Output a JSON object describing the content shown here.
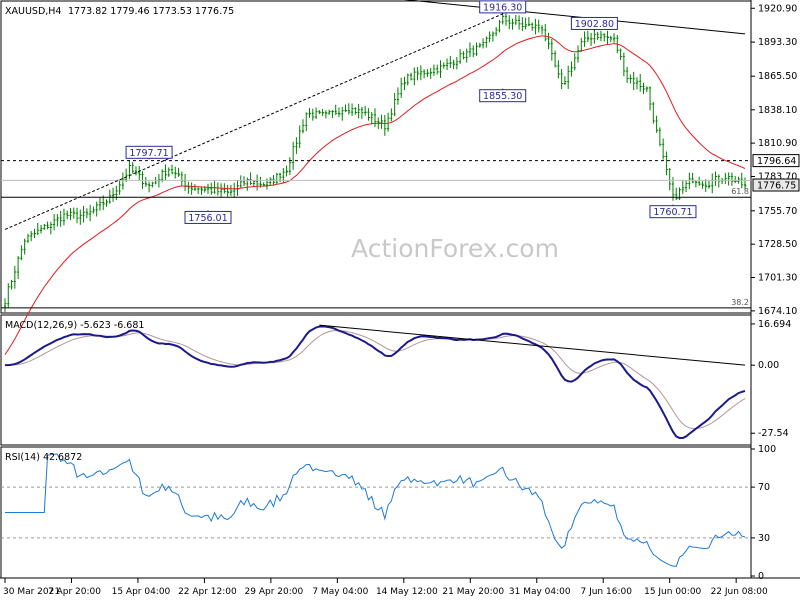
{
  "header": {
    "symbol_tf": "XAUUSD,H4",
    "ohlc": "1773.82 1779.46 1773.53 1776.75"
  },
  "watermark": "ActionForex.com",
  "colors": {
    "candle": "#008000",
    "ma": "#e11b1b",
    "macd": "#1a1a8c",
    "signal": "#b49696",
    "rsi": "#1e78d8",
    "label_border": "#2a2a9a"
  },
  "chart_data": [
    {
      "type": "candlestick",
      "panel": "price",
      "ylim": [
        1674,
        1926
      ],
      "y_ticks": [
        1920.9,
        1893.3,
        1865.5,
        1838.1,
        1810.9,
        1783.7,
        1755.7,
        1728.5,
        1701.3,
        1674.1
      ],
      "x_tick_labels": [
        "30 Mar 2021",
        "7 Apr 20:00",
        "15 Apr 04:00",
        "22 Apr 12:00",
        "29 Apr 20:00",
        "7 May 04:00",
        "14 May 12:00",
        "21 May 20:00",
        "31 May 04:00",
        "7 Jun 16:00",
        "15 Jun 00:00",
        "22 Jun 08:00"
      ],
      "anchors": [
        [
          0,
          1683
        ],
        [
          6,
          1732
        ],
        [
          12,
          1742
        ],
        [
          18,
          1752
        ],
        [
          25,
          1752
        ],
        [
          32,
          1766
        ],
        [
          38,
          1790
        ],
        [
          44,
          1776
        ],
        [
          50,
          1790
        ],
        [
          56,
          1775
        ],
        [
          62,
          1773
        ],
        [
          68,
          1770
        ],
        [
          74,
          1780
        ],
        [
          80,
          1777
        ],
        [
          86,
          1790
        ],
        [
          92,
          1835
        ],
        [
          98,
          1833
        ],
        [
          104,
          1840
        ],
        [
          110,
          1835
        ],
        [
          116,
          1825
        ],
        [
          122,
          1863
        ],
        [
          128,
          1869
        ],
        [
          134,
          1873
        ],
        [
          140,
          1883
        ],
        [
          146,
          1890
        ],
        [
          152,
          1912
        ],
        [
          158,
          1907
        ],
        [
          164,
          1905
        ],
        [
          170,
          1857
        ],
        [
          176,
          1892
        ],
        [
          180,
          1900
        ],
        [
          186,
          1895
        ],
        [
          190,
          1865
        ],
        [
          196,
          1855
        ],
        [
          200,
          1808
        ],
        [
          204,
          1766
        ],
        [
          210,
          1782
        ],
        [
          214,
          1778
        ],
        [
          220,
          1784
        ],
        [
          226,
          1776
        ]
      ],
      "price_labels": [
        {
          "text": "1916.30",
          "bar": 152,
          "value": 1916.3,
          "pos": "above"
        },
        {
          "text": "1902.80",
          "bar": 180,
          "value": 1902.8,
          "pos": "above"
        },
        {
          "text": "1855.30",
          "bar": 152,
          "value": 1855.3,
          "pos": "below"
        },
        {
          "text": "1797.71",
          "bar": 44,
          "value": 1797.71,
          "pos": "above"
        },
        {
          "text": "1756.01",
          "bar": 62,
          "value": 1756.01,
          "pos": "below"
        },
        {
          "text": "1760.71",
          "bar": 204,
          "value": 1760.71,
          "pos": "below"
        }
      ],
      "hlines": [
        {
          "value": 1796.64,
          "style": "dashed",
          "label": "1796.64"
        },
        {
          "value": 1766.8,
          "style": "solid",
          "label": "61.8"
        },
        {
          "value": 1780.5,
          "style": "faint",
          "label": ""
        },
        {
          "value": 1676.5,
          "style": "solid",
          "label": "38.2"
        }
      ],
      "current_price": "1776.75",
      "trendlines": [
        {
          "from": [
            0,
            1740.5
          ],
          "to": [
            152,
            1916.3
          ],
          "style": "dashed"
        },
        {
          "from": [
            96,
            1935
          ],
          "to": [
            226,
            1900
          ],
          "style": "solid"
        }
      ]
    },
    {
      "type": "line",
      "panel": "macd",
      "title": "MACD(12,26,9) -5.623 -6.681",
      "ylim": [
        -31.5,
        19.5
      ],
      "y_ticks": [
        16.694,
        0.0,
        -27.54
      ],
      "y_tick_labels": [
        "16.694",
        "0.00",
        "-27.54"
      ],
      "trendline": {
        "from": [
          96,
          16.2
        ],
        "to": [
          226,
          0.0
        ]
      }
    },
    {
      "type": "line",
      "panel": "rsi",
      "title": "RSI(14) 42.6872",
      "ylim": [
        0,
        100
      ],
      "y_ticks": [
        100,
        70,
        30,
        0
      ],
      "y_tick_labels": [
        "100",
        "70",
        "30",
        "0"
      ]
    }
  ]
}
